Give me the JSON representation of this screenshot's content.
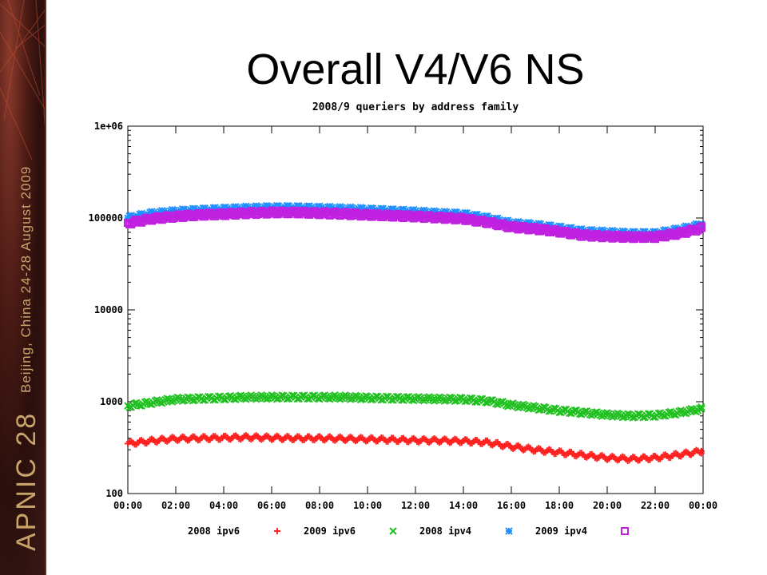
{
  "slide": {
    "title": "Overall V4/V6 NS",
    "sidebar_text": {
      "event": "APNIC 28",
      "details": "Beijing, China  24-28 August 2009"
    }
  },
  "colors": {
    "sidebar_bg": "#3a1611",
    "sidebar_text": "#c9a46a",
    "series_2008_ipv6": "#ff2020",
    "series_2009_ipv6": "#20c020",
    "series_2008_ipv4": "#2090ff",
    "series_2009_ipv4": "#c020e0"
  },
  "chart_data": {
    "type": "scatter",
    "title": "2008/9 queriers by address family",
    "xlabel": "",
    "ylabel": "",
    "yscale": "log",
    "ylim": [
      100,
      1000000
    ],
    "y_ticks": [
      "100",
      "1000",
      "10000",
      "100000",
      "1e+06"
    ],
    "y_tick_values": [
      100,
      1000,
      10000,
      100000,
      1000000
    ],
    "xlim": [
      0,
      24
    ],
    "x_ticks": [
      "00:00",
      "02:00",
      "04:00",
      "06:00",
      "08:00",
      "10:00",
      "12:00",
      "14:00",
      "16:00",
      "18:00",
      "20:00",
      "22:00",
      "00:00"
    ],
    "x_tick_values": [
      0,
      2,
      4,
      6,
      8,
      10,
      12,
      14,
      16,
      18,
      20,
      22,
      24
    ],
    "grid": false,
    "legend": "bottom",
    "x": [
      0,
      1,
      2,
      3,
      4,
      5,
      6,
      7,
      8,
      9,
      10,
      11,
      12,
      13,
      14,
      15,
      16,
      17,
      18,
      19,
      20,
      21,
      22,
      23,
      24
    ],
    "series": [
      {
        "name": "2008 ipv6",
        "marker": "plus",
        "values": [
          350,
          375,
          395,
          400,
          405,
          410,
          405,
          400,
          400,
          395,
          390,
          385,
          380,
          378,
          372,
          360,
          325,
          300,
          280,
          262,
          245,
          238,
          245,
          265,
          290
        ]
      },
      {
        "name": "2009 ipv6",
        "marker": "x",
        "values": [
          900,
          980,
          1060,
          1080,
          1100,
          1120,
          1120,
          1120,
          1120,
          1120,
          1100,
          1090,
          1080,
          1070,
          1060,
          1020,
          920,
          860,
          800,
          760,
          720,
          700,
          710,
          760,
          840
        ]
      },
      {
        "name": "2008 ipv4",
        "marker": "star",
        "values": [
          100000,
          112000,
          118000,
          122000,
          125000,
          128000,
          130000,
          130000,
          128000,
          126000,
          123000,
          120000,
          117000,
          113000,
          110000,
          100000,
          88000,
          84000,
          78000,
          72000,
          70000,
          68000,
          68000,
          75000,
          85000
        ]
      },
      {
        "name": "2009 ipv4",
        "marker": "square",
        "values": [
          88000,
          98000,
          104000,
          108000,
          110000,
          113000,
          115000,
          115000,
          113000,
          111000,
          108000,
          106000,
          104000,
          101000,
          98000,
          90000,
          80000,
          76000,
          71000,
          65000,
          63000,
          62000,
          62000,
          68000,
          78000
        ]
      }
    ]
  }
}
